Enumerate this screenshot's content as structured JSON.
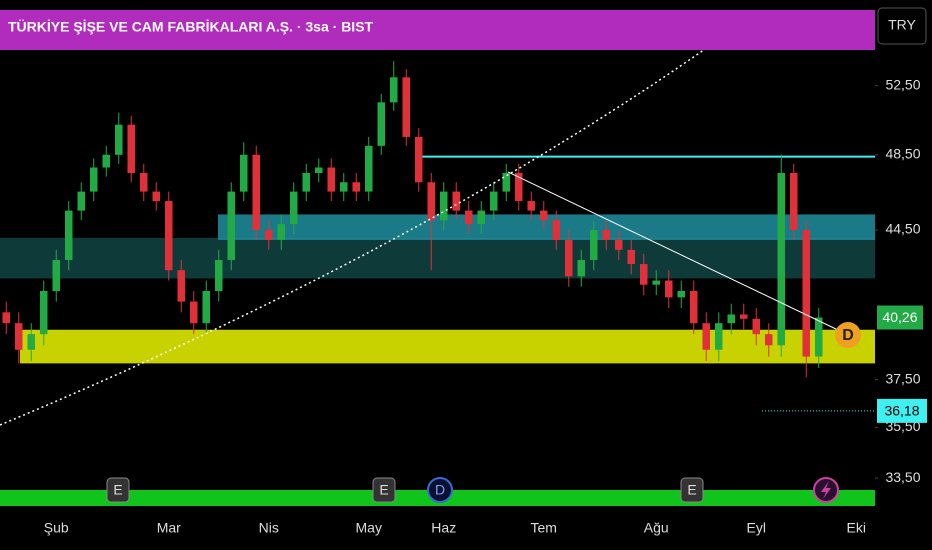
{
  "chart_data": {
    "type": "candlestick",
    "title": "TÜRKİYE ŞİŞE VE CAM FABRİKALARI A.Ş. · 3sa · BIST",
    "currency": "TRY",
    "categories": [
      null,
      null,
      null,
      null,
      "Şub",
      null,
      null,
      null,
      null,
      null,
      null,
      null,
      null,
      "Mar",
      null,
      null,
      null,
      null,
      null,
      null,
      null,
      "Nis",
      null,
      null,
      null,
      null,
      null,
      null,
      null,
      "May",
      null,
      null,
      null,
      null,
      null,
      "Haz",
      null,
      null,
      null,
      null,
      null,
      null,
      null,
      "Tem",
      null,
      null,
      null,
      null,
      null,
      null,
      null,
      null,
      "Ağu",
      null,
      null,
      null,
      null,
      null,
      null,
      null,
      "Eyl",
      null,
      null,
      null,
      null,
      null,
      null,
      null,
      "Eki",
      null
    ],
    "open": [
      40.5,
      40.0,
      38.8,
      39.5,
      41.5,
      43.0,
      45.5,
      46.5,
      47.8,
      48.5,
      50.2,
      47.5,
      46.5,
      46.0,
      42.5,
      41.0,
      40.0,
      41.5,
      43.0,
      46.5,
      48.5,
      44.5,
      44.0,
      44.8,
      46.5,
      47.5,
      47.8,
      46.5,
      47.0,
      46.5,
      49.0,
      51.5,
      53.0,
      49.5,
      47.0,
      45.0,
      46.5,
      45.5,
      44.8,
      45.5,
      46.5,
      47.5,
      46.0,
      45.5,
      45.0,
      44.0,
      42.2,
      43.0,
      44.5,
      44.0,
      43.5,
      42.8,
      41.8,
      42.0,
      41.2,
      41.5,
      40.0,
      38.8,
      40.0,
      40.4,
      40.2,
      39.5,
      39.0,
      47.5,
      44.5,
      38.5,
      null,
      null,
      null,
      null
    ],
    "high": [
      41.0,
      40.5,
      40.0,
      42.0,
      43.5,
      46.0,
      47.0,
      48.3,
      49.0,
      50.9,
      50.7,
      48.0,
      47.0,
      46.5,
      43.0,
      41.5,
      42.0,
      43.5,
      47.0,
      49.2,
      49.0,
      45.0,
      45.3,
      47.0,
      48.0,
      48.3,
      48.3,
      47.5,
      47.5,
      49.5,
      52.0,
      54.0,
      53.5,
      50.0,
      47.5,
      47.0,
      47.0,
      46.0,
      46.0,
      47.0,
      48.0,
      48.0,
      46.5,
      46.0,
      45.5,
      44.5,
      43.5,
      45.0,
      45.0,
      44.5,
      44.0,
      43.3,
      42.5,
      42.5,
      42.0,
      42.0,
      40.5,
      40.5,
      40.9,
      40.9,
      40.7,
      40.0,
      48.5,
      48.0,
      45.0,
      40.7,
      null,
      null,
      null,
      null
    ],
    "low": [
      39.5,
      38.2,
      38.3,
      39.0,
      41.0,
      42.5,
      45.0,
      46.0,
      47.3,
      48.0,
      47.0,
      46.0,
      45.5,
      42.0,
      40.5,
      39.5,
      39.5,
      41.0,
      42.5,
      46.0,
      44.0,
      43.5,
      43.5,
      44.3,
      46.0,
      47.0,
      46.0,
      46.0,
      46.0,
      46.0,
      48.5,
      51.0,
      49.0,
      46.5,
      42.5,
      44.5,
      45.0,
      44.3,
      44.3,
      45.0,
      46.0,
      45.5,
      45.0,
      44.5,
      43.5,
      41.7,
      41.7,
      42.5,
      43.5,
      43.0,
      42.3,
      41.3,
      41.3,
      40.7,
      40.7,
      39.5,
      38.3,
      38.3,
      39.5,
      39.7,
      39.0,
      38.5,
      38.5,
      44.0,
      37.6,
      38.0,
      null,
      null,
      null,
      null
    ],
    "close": [
      40.0,
      38.8,
      39.5,
      41.5,
      43.0,
      45.5,
      46.5,
      47.8,
      48.5,
      50.2,
      47.5,
      46.5,
      46.0,
      42.5,
      41.0,
      40.0,
      41.5,
      43.0,
      46.5,
      48.5,
      44.5,
      44.0,
      44.8,
      46.5,
      47.5,
      47.8,
      46.5,
      47.0,
      46.5,
      49.0,
      51.5,
      53.0,
      49.5,
      47.0,
      45.0,
      46.5,
      45.5,
      44.8,
      45.5,
      46.5,
      47.5,
      46.0,
      45.5,
      45.0,
      44.0,
      42.2,
      43.0,
      44.5,
      44.0,
      43.5,
      42.8,
      41.8,
      42.0,
      41.2,
      41.5,
      40.0,
      38.8,
      40.0,
      40.4,
      40.2,
      39.5,
      39.0,
      47.5,
      44.5,
      38.5,
      40.26,
      null,
      null,
      null,
      null
    ],
    "up_color": "#22ab45",
    "down_color": "#e0303a",
    "log_scale": true,
    "ylim": [
      32.3,
      57.9
    ],
    "yticks": [
      {
        "value": 33.5,
        "label": "33,50"
      },
      {
        "value": 35.5,
        "label": "35,50"
      },
      {
        "value": 37.5,
        "label": "37,50"
      },
      {
        "value": 44.5,
        "label": "44,50"
      },
      {
        "value": 48.5,
        "label": "48,50"
      },
      {
        "value": 52.5,
        "label": "52,50"
      }
    ],
    "last_price": {
      "value": 40.26,
      "label": "40,26"
    },
    "marker_price": {
      "value": 36.18,
      "label": "36,18"
    },
    "zones": [
      {
        "color": "#0f3a3a",
        "range": [
          42.1,
          44.1
        ]
      },
      {
        "color": "#1e8fa0",
        "range": [
          44.0,
          45.3
        ]
      },
      {
        "color": "#c8d200",
        "range": [
          38.2,
          39.7
        ]
      }
    ],
    "resistance": {
      "color": "#3ef0f0",
      "value": 48.4
    },
    "events": [
      "E",
      "E",
      "D",
      "E"
    ],
    "dividend_badge": "D"
  }
}
